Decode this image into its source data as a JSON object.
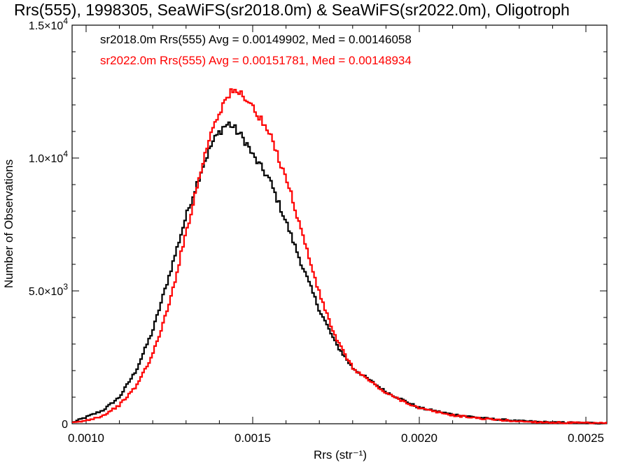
{
  "chart_data": {
    "type": "line",
    "title": "Rrs(555), 1998305, SeaWiFS(sr2018.0m) & SeaWiFS(sr2022.0m), Oligotroph",
    "xlabel": "Rrs (str⁻¹)",
    "ylabel": "Number of Observations",
    "xlim": [
      0.000958,
      0.002563
    ],
    "ylim": [
      0,
      15000
    ],
    "grid": false,
    "x_ticks": [
      {
        "value": 0.001,
        "label": "0.0010"
      },
      {
        "value": 0.0015,
        "label": "0.0015"
      },
      {
        "value": 0.002,
        "label": "0.0020"
      },
      {
        "value": 0.0025,
        "label": "0.0025"
      }
    ],
    "y_ticks": [
      {
        "value": 0,
        "label": "0",
        "exp": ""
      },
      {
        "value": 5000,
        "label": "5.0×10",
        "exp": "3"
      },
      {
        "value": 10000,
        "label": "1.0×10",
        "exp": "4"
      },
      {
        "value": 15000,
        "label": "1.5×10",
        "exp": "4"
      }
    ],
    "annotations": [
      "sr2018.0m Rrs(555) Avg = 0.00149902, Med = 0.00146058",
      "sr2022.0m Rrs(555) Avg = 0.00151781, Med = 0.00148934"
    ],
    "series": [
      {
        "color": "#000000",
        "x": [
          0.00096,
          0.001,
          0.00105,
          0.0011,
          0.00115,
          0.0012,
          0.00125,
          0.0013,
          0.00135,
          0.00138,
          0.00141,
          0.00143,
          0.00145,
          0.00148,
          0.0015,
          0.00155,
          0.0016,
          0.00165,
          0.0017,
          0.00175,
          0.0018,
          0.0019,
          0.002,
          0.0021,
          0.0022,
          0.0023,
          0.0024,
          0.00256
        ],
        "y": [
          50,
          250,
          500,
          1000,
          2000,
          3500,
          5600,
          7800,
          9700,
          10600,
          11150,
          11300,
          11050,
          10600,
          10100,
          9200,
          7600,
          5900,
          4300,
          3000,
          2100,
          1200,
          600,
          350,
          200,
          100,
          50,
          20
        ]
      },
      {
        "color": "#ff0000",
        "x": [
          0.00096,
          0.001,
          0.00105,
          0.0011,
          0.00115,
          0.0012,
          0.00125,
          0.0013,
          0.00135,
          0.00138,
          0.00141,
          0.00143,
          0.00145,
          0.00148,
          0.0015,
          0.00155,
          0.0016,
          0.00165,
          0.0017,
          0.00175,
          0.0018,
          0.0019,
          0.002,
          0.0021,
          0.0022,
          0.0023,
          0.0024,
          0.00256
        ],
        "y": [
          30,
          120,
          300,
          700,
          1400,
          2600,
          4500,
          7200,
          9800,
          11200,
          12000,
          12400,
          12500,
          12300,
          11900,
          10900,
          9300,
          7100,
          4900,
          3200,
          2100,
          1150,
          580,
          320,
          180,
          90,
          45,
          15
        ]
      }
    ]
  }
}
